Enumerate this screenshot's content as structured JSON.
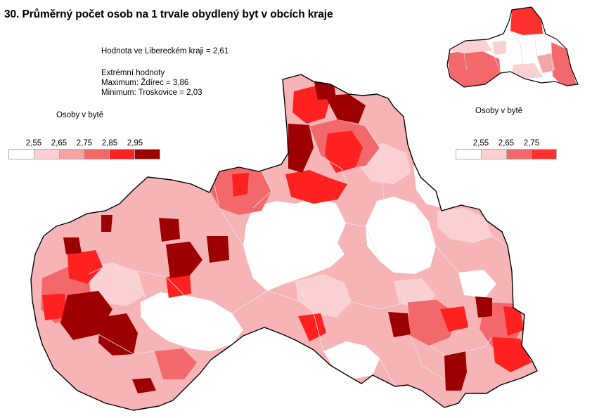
{
  "title": "30. Průměrný počet osob na 1 trvale obydlený byt v obcích kraje",
  "info": {
    "region_value": "Hodnota ve Libereckém  kraji = 2,61",
    "extremes_heading": "Extrémní hodnoty",
    "maximum": "Maximum: Ždírec = 3,86",
    "minimum": "Minimum: Troskovice = 2,03"
  },
  "main_legend": {
    "title": "Osoby v bytě",
    "ticks": [
      "2,55",
      "2,65",
      "2,75",
      "2,85",
      "2,95"
    ],
    "colors": [
      "#ffffff",
      "#fbd0d2",
      "#f6a3a6",
      "#f2686b",
      "#ff2020",
      "#9c0000"
    ]
  },
  "inset_legend": {
    "title": "Osoby v bytě",
    "ticks": [
      "2,55",
      "2,65",
      "2,75"
    ],
    "colors": [
      "#ffffff",
      "#fbd0d2",
      "#f2686b",
      "#ff3030"
    ]
  }
}
